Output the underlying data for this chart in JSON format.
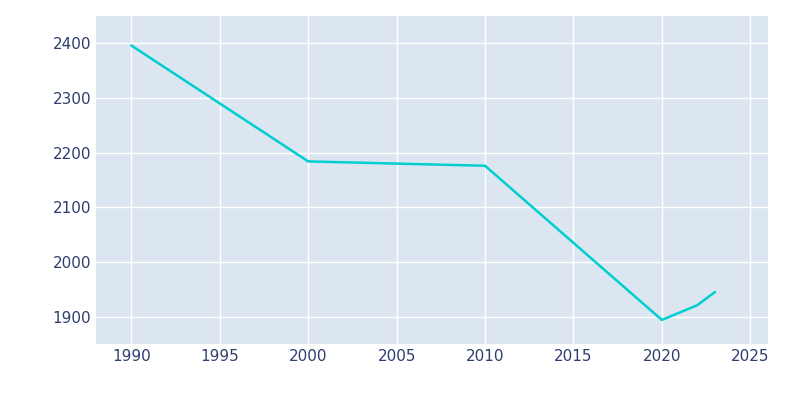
{
  "years": [
    1990,
    2000,
    2010,
    2020,
    2022,
    2023
  ],
  "population": [
    2396,
    2184,
    2176,
    1894,
    1921,
    1945
  ],
  "line_color": "#00CED1",
  "figure_bg_color": "#ffffff",
  "plot_bg_color": "#dce6f0",
  "xlim": [
    1988,
    2026
  ],
  "ylim": [
    1850,
    2450
  ],
  "xticks": [
    1990,
    1995,
    2000,
    2005,
    2010,
    2015,
    2020,
    2025
  ],
  "yticks": [
    1900,
    2000,
    2100,
    2200,
    2300,
    2400
  ],
  "grid_color": "#ffffff",
  "line_width": 1.8,
  "tick_label_color": "#2e3e6e",
  "tick_fontsize": 11
}
